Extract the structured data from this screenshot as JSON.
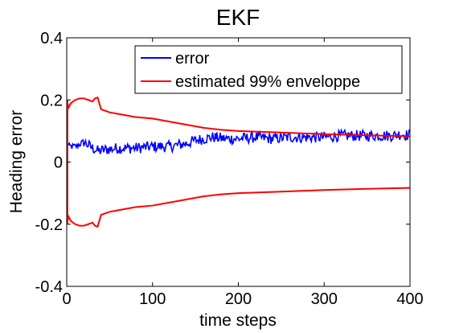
{
  "chart_data": {
    "type": "line",
    "title": "EKF",
    "xlabel": "time steps",
    "ylabel": "Heading error",
    "xlim": [
      0,
      400
    ],
    "ylim": [
      -0.4,
      0.4
    ],
    "xticks": [
      "0",
      "100",
      "200",
      "300",
      "400"
    ],
    "yticks": [
      "0.4",
      "0.2",
      "0",
      "-0.2",
      "-0.4"
    ],
    "grid": false,
    "legend_position": "top-right",
    "series": [
      {
        "name": "error",
        "color": "#0000ff",
        "style": "noisy",
        "x": [
          0,
          3,
          10,
          20,
          30,
          37,
          45,
          60,
          80,
          100,
          120,
          130,
          140,
          150,
          160,
          170,
          185,
          200,
          220,
          240,
          260,
          280,
          300,
          320,
          340,
          360,
          380,
          390,
          400
        ],
        "y": [
          0.06,
          0.05,
          0.05,
          0.065,
          0.045,
          0.035,
          0.04,
          0.045,
          0.045,
          0.05,
          0.05,
          0.055,
          0.06,
          0.07,
          0.075,
          0.08,
          0.075,
          0.075,
          0.08,
          0.075,
          0.08,
          0.08,
          0.08,
          0.085,
          0.085,
          0.085,
          0.085,
          0.09,
          0.085
        ],
        "noise_amplitude": 0.018
      },
      {
        "name": "estimated 99% enveloppe",
        "color": "#ff0000",
        "mirrored": true,
        "x": [
          0,
          1,
          2,
          5,
          10,
          15,
          20,
          25,
          30,
          33,
          36,
          40,
          50,
          60,
          80,
          100,
          120,
          140,
          160,
          180,
          200,
          220,
          250,
          300,
          350,
          400
        ],
        "y": [
          0.2,
          0.19,
          0.175,
          0.19,
          0.2,
          0.205,
          0.205,
          0.2,
          0.195,
          0.205,
          0.208,
          0.17,
          0.16,
          0.155,
          0.145,
          0.14,
          0.13,
          0.12,
          0.11,
          0.104,
          0.1,
          0.098,
          0.095,
          0.09,
          0.086,
          0.083
        ]
      }
    ]
  }
}
